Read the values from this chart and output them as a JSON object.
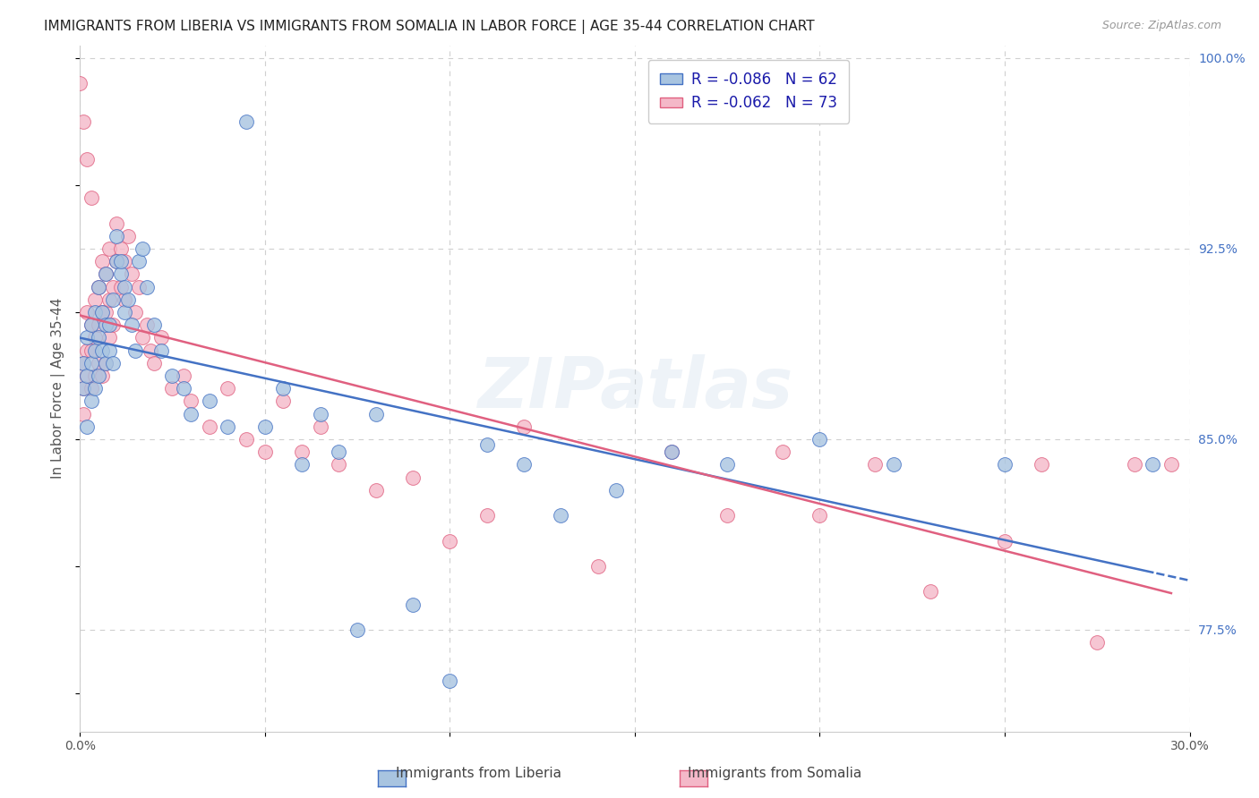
{
  "title": "IMMIGRANTS FROM LIBERIA VS IMMIGRANTS FROM SOMALIA IN LABOR FORCE | AGE 35-44 CORRELATION CHART",
  "source": "Source: ZipAtlas.com",
  "ylabel": "In Labor Force | Age 35-44",
  "xlim": [
    0.0,
    0.3
  ],
  "ylim": [
    0.735,
    1.005
  ],
  "xticks": [
    0.0,
    0.05,
    0.1,
    0.15,
    0.2,
    0.25,
    0.3
  ],
  "grid_color": "#d0d0d0",
  "background_color": "#ffffff",
  "watermark": "ZIPatlas",
  "legend_liberia_r": "R = -0.086",
  "legend_liberia_n": "N = 62",
  "legend_somalia_r": "R = -0.062",
  "legend_somalia_n": "N = 73",
  "liberia_color": "#a8c4e0",
  "somalia_color": "#f4b8c8",
  "liberia_line_color": "#4472c4",
  "somalia_line_color": "#e06080",
  "title_fontsize": 11,
  "axis_label_fontsize": 11,
  "tick_fontsize": 10,
  "liberia_x": [
    0.001,
    0.001,
    0.002,
    0.002,
    0.002,
    0.003,
    0.003,
    0.003,
    0.004,
    0.004,
    0.004,
    0.005,
    0.005,
    0.005,
    0.006,
    0.006,
    0.007,
    0.007,
    0.007,
    0.008,
    0.008,
    0.009,
    0.009,
    0.01,
    0.01,
    0.011,
    0.011,
    0.012,
    0.012,
    0.013,
    0.014,
    0.015,
    0.016,
    0.017,
    0.018,
    0.02,
    0.022,
    0.025,
    0.028,
    0.03,
    0.035,
    0.04,
    0.045,
    0.05,
    0.055,
    0.06,
    0.065,
    0.07,
    0.075,
    0.08,
    0.09,
    0.1,
    0.11,
    0.12,
    0.13,
    0.145,
    0.16,
    0.175,
    0.2,
    0.22,
    0.25,
    0.29
  ],
  "liberia_y": [
    0.87,
    0.88,
    0.855,
    0.875,
    0.89,
    0.865,
    0.88,
    0.895,
    0.87,
    0.885,
    0.9,
    0.875,
    0.89,
    0.91,
    0.885,
    0.9,
    0.88,
    0.895,
    0.915,
    0.885,
    0.895,
    0.88,
    0.905,
    0.92,
    0.93,
    0.915,
    0.92,
    0.91,
    0.9,
    0.905,
    0.895,
    0.885,
    0.92,
    0.925,
    0.91,
    0.895,
    0.885,
    0.875,
    0.87,
    0.86,
    0.865,
    0.855,
    0.975,
    0.855,
    0.87,
    0.84,
    0.86,
    0.845,
    0.775,
    0.86,
    0.785,
    0.755,
    0.848,
    0.84,
    0.82,
    0.83,
    0.845,
    0.84,
    0.85,
    0.84,
    0.84,
    0.84
  ],
  "somalia_x": [
    0.001,
    0.001,
    0.001,
    0.002,
    0.002,
    0.002,
    0.003,
    0.003,
    0.003,
    0.004,
    0.004,
    0.004,
    0.005,
    0.005,
    0.005,
    0.006,
    0.006,
    0.006,
    0.007,
    0.007,
    0.007,
    0.008,
    0.008,
    0.008,
    0.009,
    0.009,
    0.01,
    0.01,
    0.011,
    0.011,
    0.012,
    0.012,
    0.013,
    0.014,
    0.015,
    0.016,
    0.017,
    0.018,
    0.019,
    0.02,
    0.022,
    0.025,
    0.028,
    0.03,
    0.035,
    0.04,
    0.045,
    0.05,
    0.055,
    0.06,
    0.065,
    0.07,
    0.08,
    0.09,
    0.1,
    0.11,
    0.12,
    0.14,
    0.16,
    0.175,
    0.19,
    0.2,
    0.215,
    0.23,
    0.25,
    0.26,
    0.275,
    0.285,
    0.295,
    0.0,
    0.001,
    0.002,
    0.003
  ],
  "somalia_y": [
    0.87,
    0.88,
    0.86,
    0.875,
    0.885,
    0.9,
    0.87,
    0.885,
    0.895,
    0.875,
    0.89,
    0.905,
    0.88,
    0.895,
    0.91,
    0.875,
    0.9,
    0.92,
    0.88,
    0.9,
    0.915,
    0.89,
    0.905,
    0.925,
    0.895,
    0.91,
    0.92,
    0.935,
    0.91,
    0.925,
    0.905,
    0.92,
    0.93,
    0.915,
    0.9,
    0.91,
    0.89,
    0.895,
    0.885,
    0.88,
    0.89,
    0.87,
    0.875,
    0.865,
    0.855,
    0.87,
    0.85,
    0.845,
    0.865,
    0.845,
    0.855,
    0.84,
    0.83,
    0.835,
    0.81,
    0.82,
    0.855,
    0.8,
    0.845,
    0.82,
    0.845,
    0.82,
    0.84,
    0.79,
    0.81,
    0.84,
    0.77,
    0.84,
    0.84,
    0.99,
    0.975,
    0.96,
    0.945
  ]
}
